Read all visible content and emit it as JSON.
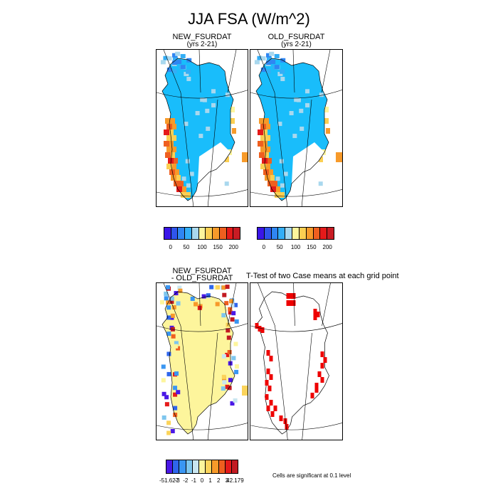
{
  "title": "JJA FSA (W/m^2)",
  "colors": {
    "fsa_palette": [
      "#3a16e8",
      "#2f55ec",
      "#2f86f2",
      "#33aef6",
      "#a9d8ee",
      "#fdf59c",
      "#fbcf52",
      "#f79a2a",
      "#ef5f1f",
      "#e51a1a",
      "#c81c24"
    ],
    "diff_palette": [
      "#4a18e6",
      "#2f66ec",
      "#3a96f2",
      "#7ec6ee",
      "#c9e6f0",
      "#fdf59c",
      "#fbd35a",
      "#f79a2a",
      "#ef5f1f",
      "#e51a1a",
      "#c21a22"
    ],
    "ttest": "#ee0000",
    "land_blue": "#19bdfb",
    "diff_fill": "#fdf59c"
  },
  "chart_data": [
    {
      "type": "heatmap",
      "title": "NEW_FSURDAT",
      "subtitle": "(yrs 2-21)",
      "colorbar_ticks": [
        "0",
        "50",
        "100",
        "150",
        "200"
      ]
    },
    {
      "type": "heatmap",
      "title": "OLD_FSURDAT",
      "subtitle": "(yrs 2-21)",
      "colorbar_ticks": [
        "0",
        "50",
        "100",
        "150",
        "200"
      ]
    },
    {
      "type": "heatmap",
      "title_line1": "NEW_FSURDAT",
      "title_line2": "- OLD_FSURDAT",
      "colorbar_ticks": [
        "-51.627",
        "-3",
        "-2",
        "-1",
        "0",
        "1",
        "2",
        "3",
        "42.179"
      ]
    },
    {
      "type": "heatmap",
      "title": "T-Test of two Case means at each grid point",
      "note": "Cells are significant at 0.1 level"
    }
  ]
}
